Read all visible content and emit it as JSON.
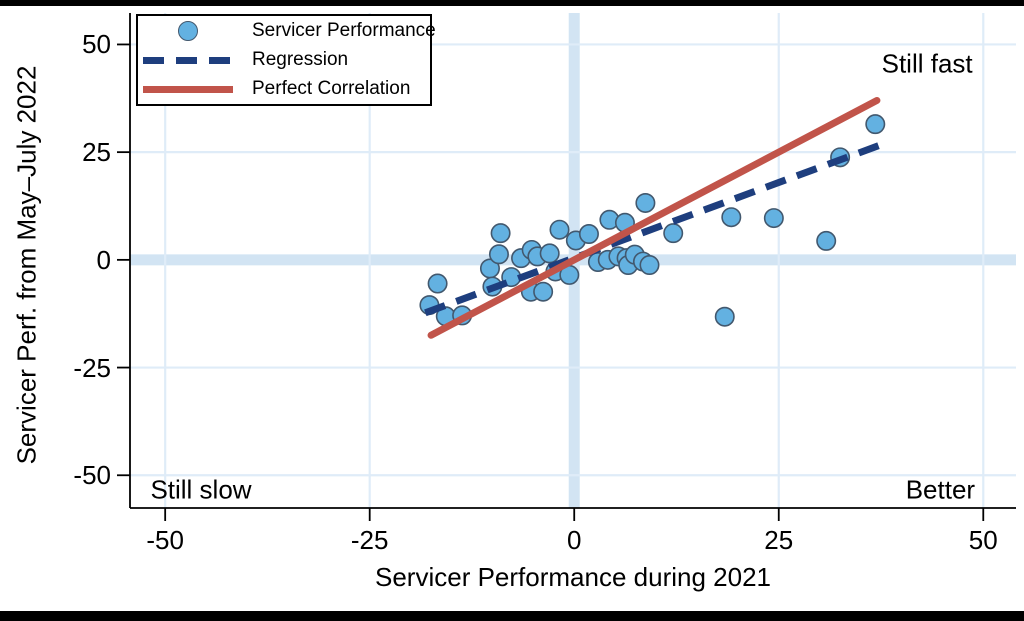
{
  "figure": {
    "background": "#ffffff",
    "letterbox_color": "#000000"
  },
  "legend": {
    "items": [
      {
        "label": "Servicer Performance",
        "sample": "circle-marker"
      },
      {
        "label": "Regression",
        "sample": "dashed-line"
      },
      {
        "label": "Perfect Correlation",
        "sample": "solid-line"
      }
    ]
  },
  "chart_data": {
    "type": "scatter",
    "title": "",
    "xlabel": "Servicer Performance during 2021",
    "ylabel": "Servicer Perf. from May–July 2022",
    "xlim": [
      -54.3,
      54.0
    ],
    "ylim": [
      -57.6,
      57.3
    ],
    "x_ticks": [
      -50,
      -25,
      0,
      25,
      50
    ],
    "y_ticks": [
      -50,
      -25,
      0,
      25,
      50
    ],
    "grid": true,
    "zero_bands": true,
    "legend_position": "top-left",
    "series": [
      {
        "name": "Servicer Performance",
        "type": "scatter",
        "points": [
          [
            -17.7,
            -10.5
          ],
          [
            -16.7,
            -5.5
          ],
          [
            -15.7,
            -13.1
          ],
          [
            -13.7,
            -12.9
          ],
          [
            -10.3,
            -2.0
          ],
          [
            -10.0,
            -6.2
          ],
          [
            -9.2,
            1.3
          ],
          [
            -9.0,
            6.2
          ],
          [
            -7.7,
            -4.0
          ],
          [
            -6.5,
            0.4
          ],
          [
            -5.3,
            -7.4
          ],
          [
            -5.2,
            2.3
          ],
          [
            -4.5,
            0.8
          ],
          [
            -3.8,
            -7.4
          ],
          [
            -3.0,
            1.5
          ],
          [
            -2.3,
            -2.7
          ],
          [
            -1.8,
            7.0
          ],
          [
            -0.6,
            -3.5
          ],
          [
            0.2,
            4.5
          ],
          [
            1.8,
            6.0
          ],
          [
            2.9,
            -0.5
          ],
          [
            4.1,
            0.0
          ],
          [
            4.3,
            9.3
          ],
          [
            5.4,
            0.8
          ],
          [
            6.2,
            8.6
          ],
          [
            6.4,
            0.4
          ],
          [
            6.6,
            -1.2
          ],
          [
            7.4,
            1.2
          ],
          [
            8.4,
            -0.4
          ],
          [
            8.7,
            13.2
          ],
          [
            9.2,
            -1.2
          ],
          [
            12.1,
            6.2
          ],
          [
            18.4,
            -13.2
          ],
          [
            19.2,
            9.9
          ],
          [
            24.4,
            9.7
          ],
          [
            30.8,
            4.4
          ],
          [
            32.5,
            23.8
          ],
          [
            36.8,
            31.5
          ]
        ]
      },
      {
        "name": "Regression",
        "type": "line",
        "style": "dashed",
        "x": [
          -18.2,
          37.2
        ],
        "y": [
          -12.3,
          26.5
        ]
      },
      {
        "name": "Perfect Correlation",
        "type": "line",
        "style": "solid",
        "x": [
          -17.5,
          37.0
        ],
        "y": [
          -17.5,
          37.0
        ]
      }
    ],
    "annotations": [
      {
        "text": "Still fast",
        "x": 48.7,
        "y": 45.5,
        "align": "right"
      },
      {
        "text": "Still slow",
        "x": -51.8,
        "y": -53.5,
        "align": "left"
      },
      {
        "text": "Better",
        "x": 49.0,
        "y": -53.5,
        "align": "right"
      }
    ],
    "colors": {
      "marker_fill": "#63b1e1",
      "marker_stroke": "#42586e",
      "regression_line": "#1e3e7e",
      "perfect_line": "#c1544a",
      "gridline": "#dfecf8",
      "zero_band": "#d2e4f3",
      "axis_line": "#000000",
      "text": "#000000"
    }
  }
}
